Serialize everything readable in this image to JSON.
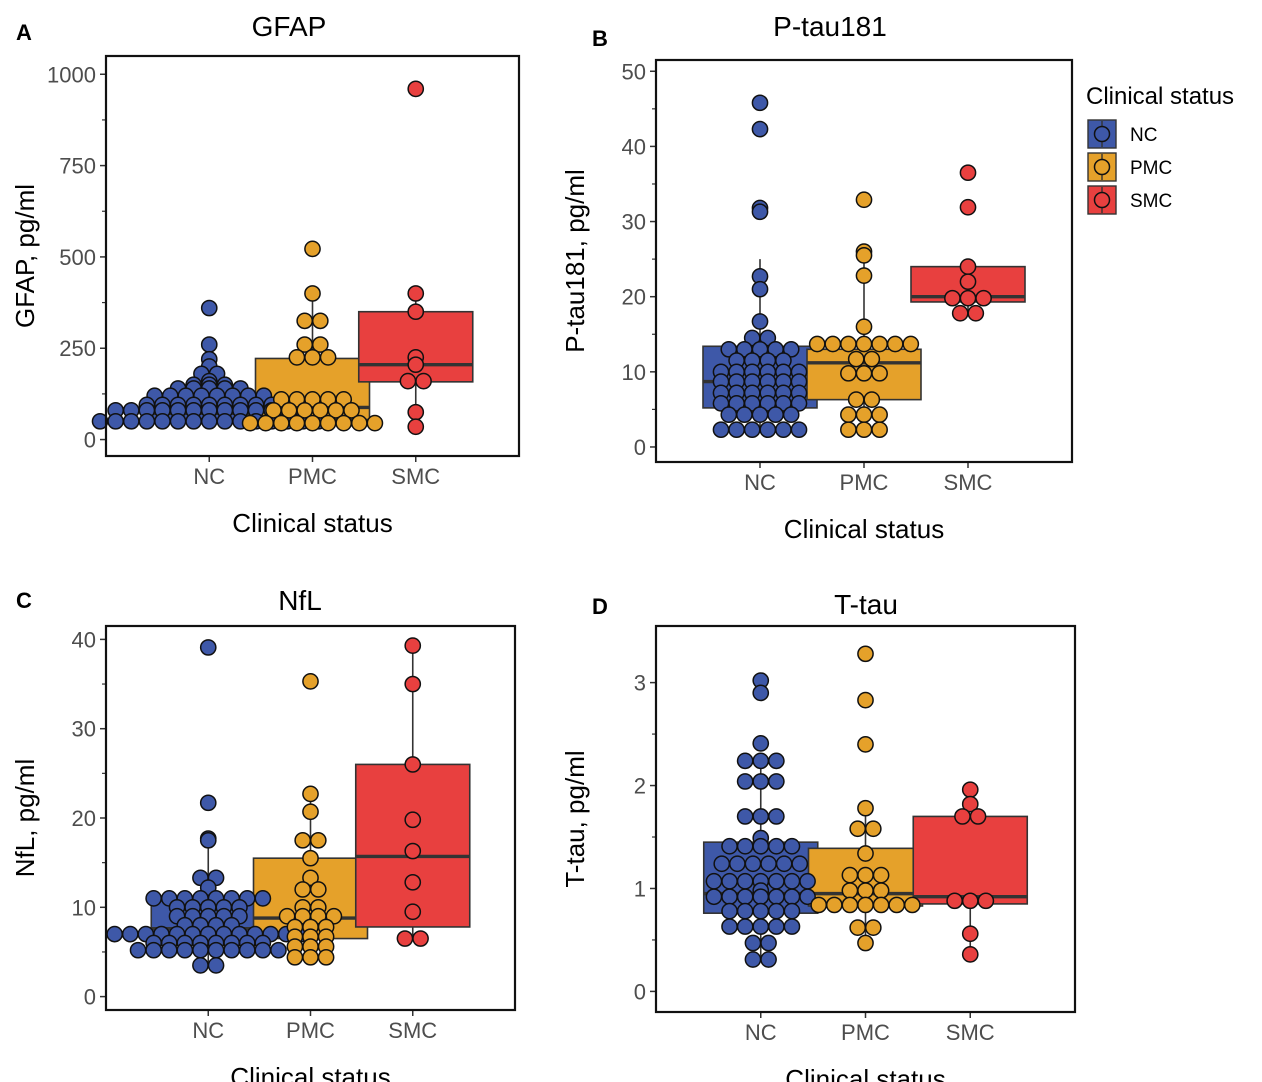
{
  "colors": {
    "NC": "#3e58a8",
    "PMC": "#e5a12a",
    "SMC": "#e8403f"
  },
  "legend": {
    "title": "Clinical status",
    "items": [
      "NC",
      "PMC",
      "SMC"
    ]
  },
  "chart_data": [
    {
      "panel": "A",
      "title": "GFAP",
      "type": "boxplot-dotplot",
      "categories": [
        "NC",
        "PMC",
        "SMC"
      ],
      "xlabel": "Clinical status",
      "ylabel": "GFAP, pg/ml",
      "ylim": [
        -45,
        1050
      ],
      "yticks": [
        0,
        250,
        500,
        750,
        1000
      ],
      "boxes": [
        {
          "group": "NC",
          "q1": 55,
          "median": 72,
          "q3": 95,
          "whisker_low": 45,
          "whisker_high": 160
        },
        {
          "group": "PMC",
          "q1": 55,
          "median": 88,
          "q3": 222,
          "whisker_low": 45,
          "whisker_high": 400
        },
        {
          "group": "SMC",
          "q1": 158,
          "median": 205,
          "q3": 350,
          "whisker_low": 35,
          "whisker_high": 400
        }
      ],
      "points": {
        "NC": [
          360,
          260,
          220,
          200,
          180,
          180,
          160,
          150,
          150,
          150,
          140,
          140,
          140,
          140,
          140,
          120,
          120,
          120,
          120,
          120,
          120,
          120,
          120,
          95,
          95,
          95,
          95,
          95,
          95,
          95,
          95,
          95,
          80,
          80,
          80,
          80,
          80,
          80,
          80,
          80,
          80,
          80,
          80,
          80,
          80,
          50,
          50,
          50,
          50,
          50,
          50,
          50,
          50,
          50,
          50,
          50,
          50,
          50,
          50,
          50
        ],
        "PMC": [
          522,
          400,
          325,
          325,
          260,
          260,
          225,
          225,
          225,
          110,
          110,
          110,
          110,
          110,
          80,
          80,
          80,
          80,
          80,
          80,
          45,
          45,
          45,
          45,
          45,
          45,
          45,
          45,
          45
        ],
        "SMC": [
          960,
          400,
          350,
          225,
          205,
          160,
          160,
          75,
          35
        ]
      }
    },
    {
      "panel": "B",
      "title": "P-tau181",
      "type": "boxplot-dotplot",
      "categories": [
        "NC",
        "PMC",
        "SMC"
      ],
      "xlabel": "Clinical status",
      "ylabel": "P-tau181, pg/ml",
      "ylim": [
        -2,
        51.5
      ],
      "yticks": [
        0,
        10,
        20,
        30,
        40,
        50
      ],
      "boxes": [
        {
          "group": "NC",
          "q1": 5.2,
          "median": 8.7,
          "q3": 13.4,
          "whisker_low": 2.3,
          "whisker_high": 25
        },
        {
          "group": "PMC",
          "q1": 6.3,
          "median": 11.2,
          "q3": 13.0,
          "whisker_low": 2.3,
          "whisker_high": 26
        },
        {
          "group": "SMC",
          "q1": 19.3,
          "median": 20.0,
          "q3": 24.0,
          "whisker_low": 17.8,
          "whisker_high": 24.0
        }
      ],
      "points": {
        "NC": [
          45.8,
          42.3,
          31.8,
          31.3,
          22.7,
          21.0,
          16.7,
          14.5,
          14.5,
          13.0,
          13.0,
          13.0,
          13.0,
          13.0,
          11.5,
          11.5,
          11.5,
          11.5,
          10.0,
          10.0,
          10.0,
          10.0,
          10.0,
          10.0,
          8.7,
          8.7,
          8.7,
          8.7,
          8.7,
          8.7,
          7.2,
          7.2,
          7.2,
          7.2,
          7.2,
          7.2,
          5.8,
          5.8,
          5.8,
          5.8,
          5.8,
          5.8,
          4.3,
          4.3,
          4.3,
          4.3,
          4.3,
          2.3,
          2.3,
          2.3,
          2.3,
          2.3,
          2.3
        ],
        "PMC": [
          32.9,
          26.0,
          25.5,
          22.8,
          16.0,
          13.7,
          13.7,
          13.7,
          13.7,
          13.7,
          13.7,
          13.7,
          11.7,
          11.7,
          9.8,
          9.8,
          9.8,
          6.3,
          6.3,
          4.3,
          4.3,
          4.3,
          2.3,
          2.3,
          2.3
        ],
        "SMC": [
          36.5,
          31.9,
          24.0,
          22.0,
          19.8,
          19.8,
          19.8,
          17.8,
          17.8
        ]
      }
    },
    {
      "panel": "C",
      "title": "NfL",
      "type": "boxplot-dotplot",
      "categories": [
        "NC",
        "PMC",
        "SMC"
      ],
      "xlabel": "Clinical status",
      "ylabel": "NfL, pg/ml",
      "ylim": [
        -1.5,
        41.5
      ],
      "yticks": [
        0,
        10,
        20,
        30,
        40
      ],
      "boxes": [
        {
          "group": "NC",
          "q1": 6.5,
          "median": 7.6,
          "q3": 11.0,
          "whisker_low": 3.5,
          "whisker_high": 17.5
        },
        {
          "group": "PMC",
          "q1": 6.5,
          "median": 8.8,
          "q3": 15.5,
          "whisker_low": 4.3,
          "whisker_high": 22.7
        },
        {
          "group": "SMC",
          "q1": 7.8,
          "median": 15.7,
          "q3": 26.0,
          "whisker_low": 6.5,
          "whisker_high": 39.3
        }
      ],
      "points": {
        "NC": [
          39.1,
          21.7,
          17.7,
          17.5,
          13.3,
          13.3,
          12.2,
          11.0,
          11.0,
          11.0,
          11.0,
          11.0,
          11.0,
          11.0,
          11.0,
          10.0,
          10.0,
          10.0,
          10.0,
          10.0,
          9.0,
          9.0,
          9.0,
          9.0,
          9.0,
          8.0,
          8.0,
          8.0,
          8.0,
          7.0,
          7.0,
          7.0,
          7.0,
          7.0,
          7.0,
          7.0,
          7.0,
          7.0,
          7.0,
          7.0,
          7.0,
          7.0,
          6.0,
          6.0,
          6.0,
          6.0,
          6.0,
          6.0,
          6.0,
          6.0,
          5.2,
          5.2,
          5.2,
          5.2,
          5.2,
          5.2,
          5.2,
          5.2,
          5.2,
          5.2,
          3.5,
          3.5
        ],
        "PMC": [
          35.3,
          22.7,
          20.7,
          17.5,
          17.5,
          15.5,
          13.3,
          12.0,
          12.0,
          10.0,
          10.0,
          9.0,
          9.0,
          9.0,
          9.0,
          7.8,
          7.8,
          7.8,
          6.7,
          6.7,
          6.7,
          5.6,
          5.6,
          5.6,
          4.4,
          4.4,
          4.4
        ],
        "SMC": [
          39.3,
          35.0,
          26.0,
          19.8,
          16.3,
          12.8,
          9.5,
          6.5,
          6.5
        ]
      }
    },
    {
      "panel": "D",
      "title": "T-tau",
      "type": "boxplot-dotplot",
      "categories": [
        "NC",
        "PMC",
        "SMC"
      ],
      "xlabel": "Clinical status",
      "ylabel": "T-tau, pg/ml",
      "ylim": [
        -0.2,
        3.55
      ],
      "yticks": [
        0,
        1,
        2,
        3
      ],
      "boxes": [
        {
          "group": "NC",
          "q1": 0.76,
          "median": 0.95,
          "q3": 1.45,
          "whisker_low": 0.31,
          "whisker_high": 2.21
        },
        {
          "group": "PMC",
          "q1": 0.83,
          "median": 0.95,
          "q3": 1.39,
          "whisker_low": 0.47,
          "whisker_high": 1.78
        },
        {
          "group": "SMC",
          "q1": 0.85,
          "median": 0.92,
          "q3": 1.7,
          "whisker_low": 0.36,
          "whisker_high": 1.7
        }
      ],
      "points": {
        "NC": [
          3.02,
          2.9,
          2.41,
          2.24,
          2.24,
          2.24,
          2.04,
          2.04,
          2.04,
          1.7,
          1.7,
          1.7,
          1.49,
          1.41,
          1.41,
          1.41,
          1.41,
          1.41,
          1.24,
          1.24,
          1.24,
          1.24,
          1.24,
          1.24,
          1.07,
          1.07,
          1.07,
          1.07,
          1.07,
          1.07,
          1.07,
          0.98,
          0.92,
          0.92,
          0.92,
          0.92,
          0.92,
          0.92,
          0.92,
          0.78,
          0.78,
          0.78,
          0.78,
          0.78,
          0.63,
          0.63,
          0.63,
          0.63,
          0.63,
          0.47,
          0.47,
          0.31,
          0.31
        ],
        "PMC": [
          3.28,
          2.83,
          2.4,
          1.78,
          1.58,
          1.58,
          1.34,
          1.13,
          1.13,
          1.13,
          0.98,
          0.98,
          0.98,
          0.84,
          0.84,
          0.84,
          0.84,
          0.84,
          0.84,
          0.84,
          0.62,
          0.62,
          0.47
        ],
        "SMC": [
          1.96,
          1.82,
          1.7,
          1.7,
          0.88,
          0.88,
          0.88,
          0.56,
          0.36
        ]
      }
    }
  ]
}
